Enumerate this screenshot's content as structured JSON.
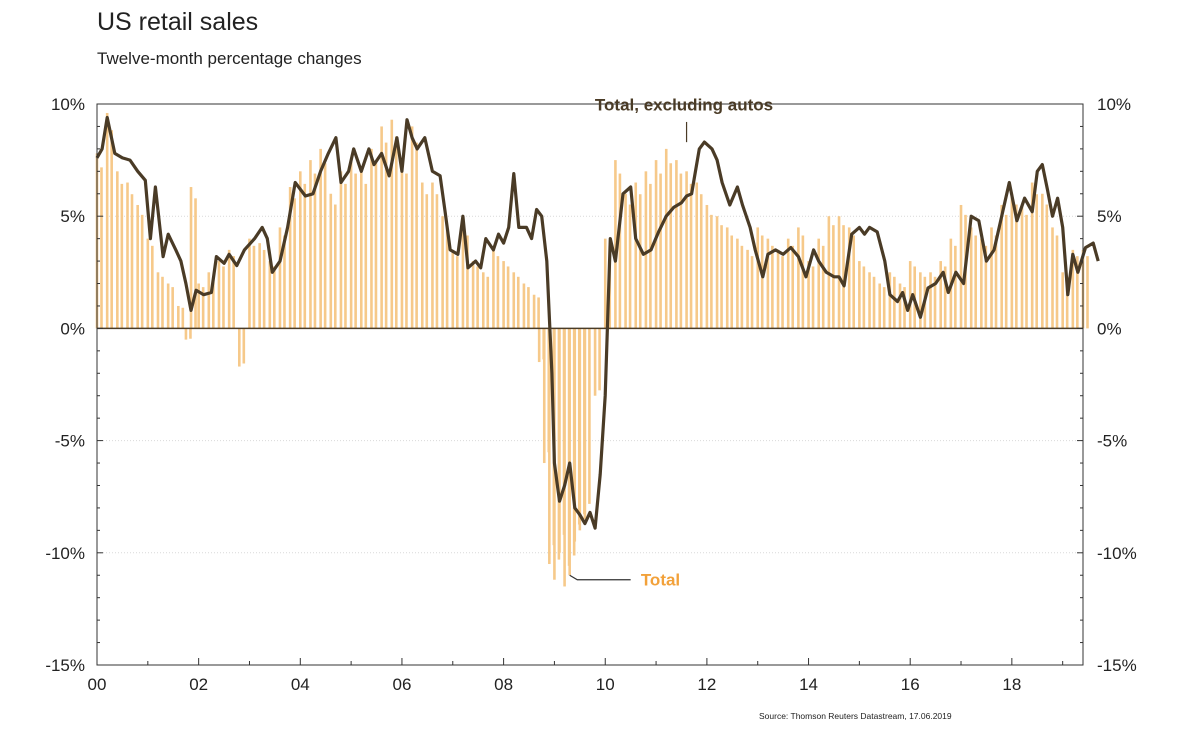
{
  "title": "US retail sales",
  "subtitle": "Twelve-month percentage changes",
  "source": "Source: Thomson Reuters Datastream, 17.06.2019",
  "colors": {
    "total": "#f6c98a",
    "total_label": "#f2a13a",
    "excluding_autos": "#4a3b26",
    "axis": "#333333"
  },
  "chart_data": {
    "type": "bar+line",
    "title": "US retail sales",
    "subtitle": "Twelve-month percentage changes",
    "ylim": [
      -15,
      10
    ],
    "yticks_left": [
      "10%",
      "5%",
      "0%",
      "-5%",
      "-10%",
      "-15%"
    ],
    "yticks_right": [
      "10%",
      "5%",
      "0%",
      "-5%",
      "-10%",
      "-15%"
    ],
    "ytick_values": [
      10,
      5,
      0,
      -5,
      -10,
      -15
    ],
    "xlim": [
      2000,
      2019.4
    ],
    "xticks": [
      "00",
      "02",
      "04",
      "06",
      "08",
      "10",
      "12",
      "14",
      "16",
      "18"
    ],
    "xtick_values": [
      2000,
      2002,
      2004,
      2006,
      2008,
      2010,
      2012,
      2014,
      2016,
      2018
    ],
    "grid": true,
    "series": [
      {
        "name": "Total",
        "type": "bar",
        "points": [
          [
            2000.0,
            7.8
          ],
          [
            2000.2,
            9.6
          ],
          [
            2000.4,
            7.0
          ],
          [
            2000.6,
            6.5
          ],
          [
            2000.8,
            5.5
          ],
          [
            2001.0,
            4.0
          ],
          [
            2001.2,
            2.5
          ],
          [
            2001.4,
            2.0
          ],
          [
            2001.6,
            1.0
          ],
          [
            2001.75,
            -0.5
          ],
          [
            2001.85,
            6.3
          ],
          [
            2002.0,
            2.0
          ],
          [
            2002.2,
            2.5
          ],
          [
            2002.4,
            3.0
          ],
          [
            2002.6,
            3.5
          ],
          [
            2002.8,
            -1.7
          ],
          [
            2003.0,
            4.0
          ],
          [
            2003.2,
            3.8
          ],
          [
            2003.4,
            3.0
          ],
          [
            2003.6,
            4.5
          ],
          [
            2003.8,
            6.3
          ],
          [
            2004.0,
            7.0
          ],
          [
            2004.2,
            7.5
          ],
          [
            2004.4,
            8.0
          ],
          [
            2004.6,
            6.0
          ],
          [
            2004.8,
            7.0
          ],
          [
            2005.0,
            7.5
          ],
          [
            2005.2,
            7.0
          ],
          [
            2005.4,
            8.0
          ],
          [
            2005.6,
            9.0
          ],
          [
            2005.8,
            9.3
          ],
          [
            2006.0,
            7.5
          ],
          [
            2006.2,
            9.0
          ],
          [
            2006.4,
            6.5
          ],
          [
            2006.6,
            6.5
          ],
          [
            2006.8,
            5.0
          ],
          [
            2007.0,
            3.5
          ],
          [
            2007.2,
            4.5
          ],
          [
            2007.4,
            3.0
          ],
          [
            2007.6,
            2.5
          ],
          [
            2007.8,
            3.5
          ],
          [
            2008.0,
            3.0
          ],
          [
            2008.2,
            2.5
          ],
          [
            2008.4,
            2.0
          ],
          [
            2008.6,
            1.5
          ],
          [
            2008.7,
            -1.5
          ],
          [
            2008.8,
            -6.0
          ],
          [
            2008.9,
            -10.5
          ],
          [
            2009.0,
            -11.2
          ],
          [
            2009.1,
            -10.0
          ],
          [
            2009.2,
            -11.5
          ],
          [
            2009.3,
            -11.0
          ],
          [
            2009.4,
            -9.5
          ],
          [
            2009.5,
            -9.0
          ],
          [
            2009.6,
            -8.5
          ],
          [
            2009.8,
            -3.0
          ],
          [
            2010.0,
            4.0
          ],
          [
            2010.2,
            7.5
          ],
          [
            2010.4,
            6.0
          ],
          [
            2010.6,
            6.5
          ],
          [
            2010.8,
            7.0
          ],
          [
            2011.0,
            7.5
          ],
          [
            2011.2,
            8.0
          ],
          [
            2011.4,
            7.5
          ],
          [
            2011.6,
            7.0
          ],
          [
            2011.8,
            6.5
          ],
          [
            2012.0,
            5.5
          ],
          [
            2012.2,
            5.0
          ],
          [
            2012.4,
            4.5
          ],
          [
            2012.6,
            4.0
          ],
          [
            2012.8,
            3.5
          ],
          [
            2013.0,
            4.5
          ],
          [
            2013.2,
            4.0
          ],
          [
            2013.4,
            3.5
          ],
          [
            2013.6,
            4.0
          ],
          [
            2013.8,
            4.5
          ],
          [
            2014.0,
            3.0
          ],
          [
            2014.2,
            4.0
          ],
          [
            2014.4,
            5.0
          ],
          [
            2014.6,
            5.0
          ],
          [
            2014.8,
            4.5
          ],
          [
            2015.0,
            3.0
          ],
          [
            2015.2,
            2.5
          ],
          [
            2015.4,
            2.0
          ],
          [
            2015.6,
            2.5
          ],
          [
            2015.8,
            2.0
          ],
          [
            2016.0,
            3.0
          ],
          [
            2016.2,
            2.5
          ],
          [
            2016.4,
            2.5
          ],
          [
            2016.6,
            3.0
          ],
          [
            2016.8,
            4.0
          ],
          [
            2017.0,
            5.5
          ],
          [
            2017.2,
            4.5
          ],
          [
            2017.4,
            4.0
          ],
          [
            2017.6,
            4.5
          ],
          [
            2017.8,
            5.5
          ],
          [
            2018.0,
            6.0
          ],
          [
            2018.2,
            5.5
          ],
          [
            2018.4,
            6.5
          ],
          [
            2018.6,
            6.0
          ],
          [
            2018.8,
            4.5
          ],
          [
            2019.0,
            2.5
          ],
          [
            2019.2,
            3.5
          ],
          [
            2019.4,
            3.5
          ]
        ]
      },
      {
        "name": "Total, excluding autos",
        "type": "line",
        "points": [
          [
            2000.0,
            7.6
          ],
          [
            2000.1,
            8.0
          ],
          [
            2000.2,
            9.4
          ],
          [
            2000.35,
            7.8
          ],
          [
            2000.5,
            7.6
          ],
          [
            2000.65,
            7.5
          ],
          [
            2000.8,
            7.0
          ],
          [
            2000.95,
            6.6
          ],
          [
            2001.05,
            4.0
          ],
          [
            2001.15,
            6.3
          ],
          [
            2001.3,
            3.2
          ],
          [
            2001.4,
            4.2
          ],
          [
            2001.55,
            3.5
          ],
          [
            2001.65,
            3.0
          ],
          [
            2001.75,
            2.0
          ],
          [
            2001.85,
            0.8
          ],
          [
            2001.95,
            1.7
          ],
          [
            2002.1,
            1.5
          ],
          [
            2002.25,
            1.6
          ],
          [
            2002.35,
            3.2
          ],
          [
            2002.5,
            2.9
          ],
          [
            2002.6,
            3.3
          ],
          [
            2002.75,
            2.8
          ],
          [
            2002.9,
            3.5
          ],
          [
            2003.1,
            4.0
          ],
          [
            2003.25,
            4.5
          ],
          [
            2003.35,
            4.0
          ],
          [
            2003.45,
            2.5
          ],
          [
            2003.6,
            3.0
          ],
          [
            2003.75,
            4.5
          ],
          [
            2003.9,
            6.5
          ],
          [
            2004.1,
            5.9
          ],
          [
            2004.25,
            6.0
          ],
          [
            2004.4,
            7.0
          ],
          [
            2004.55,
            7.8
          ],
          [
            2004.7,
            8.5
          ],
          [
            2004.8,
            6.5
          ],
          [
            2004.95,
            7.0
          ],
          [
            2005.05,
            8.0
          ],
          [
            2005.2,
            7.0
          ],
          [
            2005.35,
            8.0
          ],
          [
            2005.45,
            7.3
          ],
          [
            2005.6,
            7.8
          ],
          [
            2005.75,
            6.8
          ],
          [
            2005.9,
            8.5
          ],
          [
            2006.0,
            7.0
          ],
          [
            2006.1,
            9.3
          ],
          [
            2006.2,
            8.5
          ],
          [
            2006.3,
            8.0
          ],
          [
            2006.45,
            8.5
          ],
          [
            2006.6,
            7.0
          ],
          [
            2006.75,
            6.8
          ],
          [
            2006.85,
            5.2
          ],
          [
            2006.95,
            3.5
          ],
          [
            2007.1,
            3.3
          ],
          [
            2007.2,
            5.0
          ],
          [
            2007.3,
            2.7
          ],
          [
            2007.45,
            3.0
          ],
          [
            2007.55,
            2.7
          ],
          [
            2007.65,
            4.0
          ],
          [
            2007.8,
            3.5
          ],
          [
            2007.9,
            4.2
          ],
          [
            2008.0,
            3.8
          ],
          [
            2008.1,
            4.5
          ],
          [
            2008.2,
            6.9
          ],
          [
            2008.3,
            4.5
          ],
          [
            2008.45,
            4.5
          ],
          [
            2008.55,
            4.0
          ],
          [
            2008.65,
            5.3
          ],
          [
            2008.75,
            5.0
          ],
          [
            2008.85,
            3.0
          ],
          [
            2008.95,
            -2.0
          ],
          [
            2009.0,
            -6.0
          ],
          [
            2009.1,
            -7.7
          ],
          [
            2009.2,
            -7.0
          ],
          [
            2009.3,
            -6.0
          ],
          [
            2009.4,
            -8.0
          ],
          [
            2009.5,
            -8.3
          ],
          [
            2009.6,
            -8.7
          ],
          [
            2009.7,
            -8.2
          ],
          [
            2009.8,
            -8.9
          ],
          [
            2009.9,
            -6.5
          ],
          [
            2010.0,
            -3.0
          ],
          [
            2010.1,
            4.0
          ],
          [
            2010.2,
            3.0
          ],
          [
            2010.35,
            6.0
          ],
          [
            2010.5,
            6.3
          ],
          [
            2010.6,
            4.0
          ],
          [
            2010.75,
            3.3
          ],
          [
            2010.9,
            3.5
          ],
          [
            2011.05,
            4.3
          ],
          [
            2011.2,
            5.0
          ],
          [
            2011.35,
            5.4
          ],
          [
            2011.5,
            5.6
          ],
          [
            2011.6,
            5.9
          ],
          [
            2011.7,
            6.0
          ],
          [
            2011.85,
            8.0
          ],
          [
            2011.95,
            8.3
          ],
          [
            2012.1,
            8.0
          ],
          [
            2012.2,
            7.5
          ],
          [
            2012.3,
            6.5
          ],
          [
            2012.45,
            5.5
          ],
          [
            2012.6,
            6.3
          ],
          [
            2012.7,
            5.5
          ],
          [
            2012.85,
            4.5
          ],
          [
            2012.95,
            3.5
          ],
          [
            2013.1,
            2.3
          ],
          [
            2013.2,
            3.3
          ],
          [
            2013.35,
            3.5
          ],
          [
            2013.5,
            3.3
          ],
          [
            2013.65,
            3.6
          ],
          [
            2013.8,
            3.2
          ],
          [
            2013.95,
            2.3
          ],
          [
            2014.1,
            3.5
          ],
          [
            2014.2,
            3.0
          ],
          [
            2014.35,
            2.5
          ],
          [
            2014.5,
            2.3
          ],
          [
            2014.6,
            2.3
          ],
          [
            2014.7,
            1.9
          ],
          [
            2014.85,
            4.2
          ],
          [
            2015.0,
            4.5
          ],
          [
            2015.1,
            4.2
          ],
          [
            2015.2,
            4.5
          ],
          [
            2015.35,
            4.3
          ],
          [
            2015.5,
            3.0
          ],
          [
            2015.6,
            1.5
          ],
          [
            2015.75,
            1.2
          ],
          [
            2015.85,
            1.6
          ],
          [
            2015.95,
            0.8
          ],
          [
            2016.05,
            1.5
          ],
          [
            2016.2,
            0.5
          ],
          [
            2016.35,
            1.8
          ],
          [
            2016.5,
            2.0
          ],
          [
            2016.65,
            2.5
          ],
          [
            2016.75,
            1.6
          ],
          [
            2016.9,
            2.5
          ],
          [
            2017.05,
            2.0
          ],
          [
            2017.2,
            5.0
          ],
          [
            2017.35,
            4.8
          ],
          [
            2017.5,
            3.0
          ],
          [
            2017.65,
            3.5
          ],
          [
            2017.8,
            5.0
          ],
          [
            2017.95,
            6.5
          ],
          [
            2018.1,
            4.8
          ],
          [
            2018.25,
            5.8
          ],
          [
            2018.4,
            5.2
          ],
          [
            2018.5,
            7.0
          ],
          [
            2018.6,
            7.3
          ],
          [
            2018.7,
            6.2
          ],
          [
            2018.8,
            5.0
          ],
          [
            2018.9,
            5.8
          ],
          [
            2019.0,
            4.5
          ],
          [
            2019.1,
            1.5
          ],
          [
            2019.2,
            3.3
          ],
          [
            2019.3,
            2.5
          ],
          [
            2019.45,
            3.6
          ],
          [
            2019.6,
            3.8
          ],
          [
            2019.7,
            3.0
          ]
        ]
      }
    ],
    "annotations": [
      {
        "text": "Total, excluding autos",
        "series": "Total, excluding autos"
      },
      {
        "text": "Total",
        "series": "Total"
      }
    ]
  }
}
